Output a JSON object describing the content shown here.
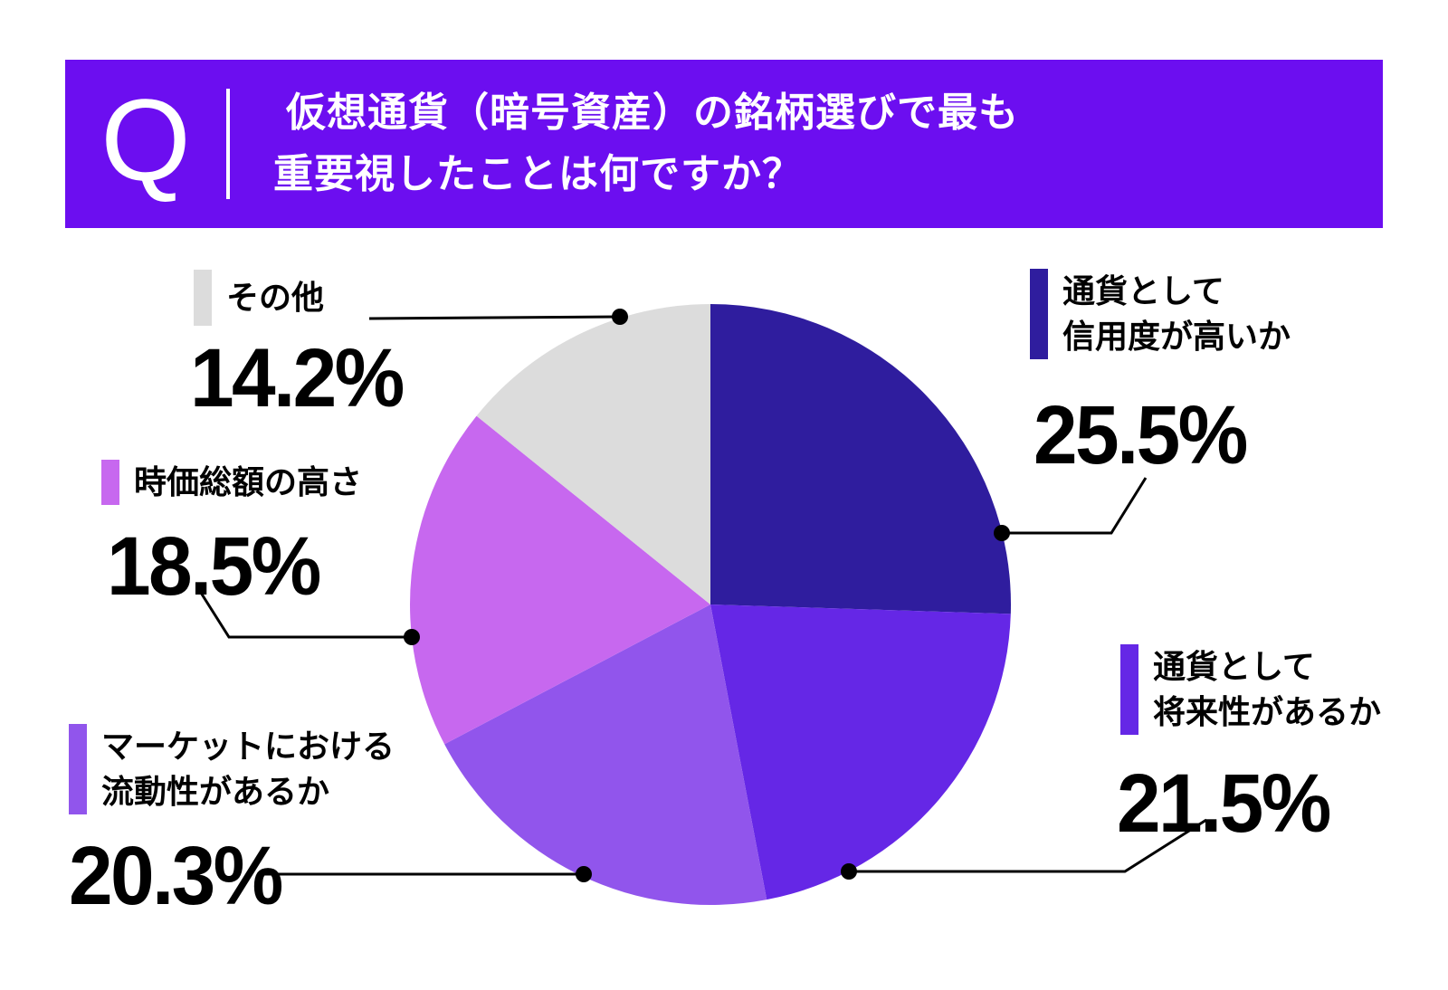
{
  "header": {
    "q_label": "Q",
    "title_line1": "仮想通貨（暗号資産）の銘柄選びで最も",
    "title_line2": "重要視したことは何ですか？",
    "banner_color": "#6c0ef0",
    "text_color": "#ffffff"
  },
  "chart_data": {
    "type": "pie",
    "title": "仮想通貨（暗号資産）の銘柄選びで最も重要視したことは何ですか？",
    "start_angle_deg": 0,
    "direction": "clockwise",
    "legend_position": "outside-callouts",
    "total": 100,
    "segments": [
      {
        "label": "通貨として\n信用度が高いか",
        "value": 25.5,
        "value_label": "25.5%",
        "color": "#2f1d9e"
      },
      {
        "label": "通貨として\n将来性があるか",
        "value": 21.5,
        "value_label": "21.5%",
        "color": "#6527e6"
      },
      {
        "label": "マーケットにおける\n流動性があるか",
        "value": 20.3,
        "value_label": "20.3%",
        "color": "#9155ec"
      },
      {
        "label": "時価総額の高さ",
        "value": 18.5,
        "value_label": "18.5%",
        "color": "#c768ef"
      },
      {
        "label": "その他",
        "value": 14.2,
        "value_label": "14.2%",
        "color": "#dcdcdc"
      }
    ]
  }
}
